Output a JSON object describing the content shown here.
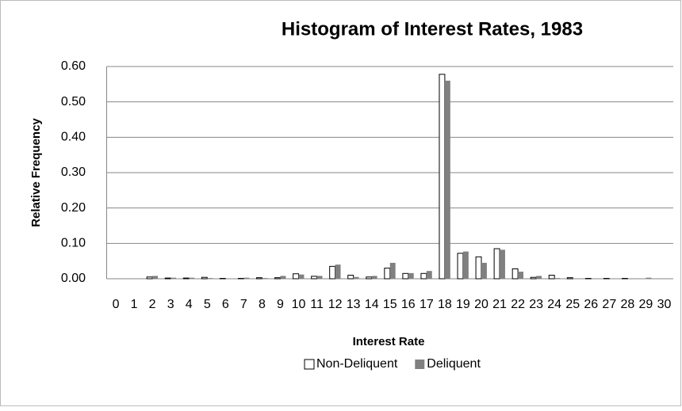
{
  "chart_data": {
    "type": "bar",
    "title": "Histogram of Interest Rates, 1983",
    "x_label": "Interest Rate",
    "y_label": "Relative Frequency",
    "categories": [
      "0",
      "1",
      "2",
      "3",
      "4",
      "5",
      "6",
      "7",
      "8",
      "9",
      "10",
      "11",
      "12",
      "13",
      "14",
      "15",
      "16",
      "17",
      "18",
      "19",
      "20",
      "21",
      "22",
      "23",
      "24",
      "25",
      "26",
      "27",
      "28",
      "29",
      "30"
    ],
    "series": [
      {
        "name": "Non-Deliquent",
        "color": "#ffffff",
        "values": [
          0,
          0,
          0.005,
          0.002,
          0.002,
          0.004,
          0.001,
          0.001,
          0.003,
          0.003,
          0.014,
          0.007,
          0.035,
          0.01,
          0.005,
          0.03,
          0.015,
          0.015,
          0.578,
          0.072,
          0.062,
          0.085,
          0.028,
          0.004,
          0.01,
          0.003,
          0.001,
          0.001,
          0.001,
          0,
          0
        ]
      },
      {
        "name": "Deliquent",
        "color": "#808080",
        "values": [
          0,
          0,
          0.008,
          0.003,
          0.003,
          0.002,
          0.001,
          0.003,
          0.002,
          0.008,
          0.012,
          0.008,
          0.04,
          0.005,
          0.008,
          0.045,
          0.016,
          0.022,
          0.56,
          0.077,
          0.045,
          0.082,
          0.02,
          0.008,
          0.002,
          0.001,
          0.001,
          0.001,
          0.001,
          0.003,
          0
        ]
      }
    ],
    "ylim": [
      0,
      0.6
    ],
    "yticks": [
      {
        "value": 0,
        "label": "0.00"
      },
      {
        "value": 0.1,
        "label": "0.10"
      },
      {
        "value": 0.2,
        "label": "0.20"
      },
      {
        "value": 0.3,
        "label": "0.30"
      },
      {
        "value": 0.4,
        "label": "0.40"
      },
      {
        "value": 0.5,
        "label": "0.50"
      },
      {
        "value": 0.6,
        "label": "0.60"
      }
    ],
    "grid": true,
    "legend": "bottom"
  }
}
